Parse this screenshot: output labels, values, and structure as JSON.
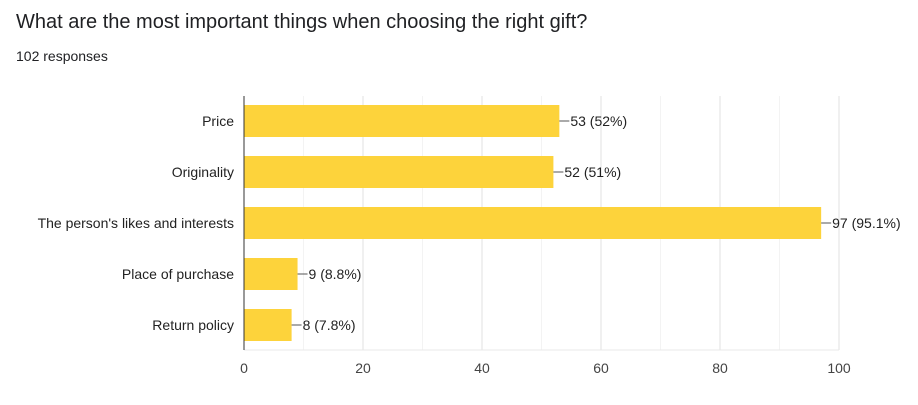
{
  "question": {
    "title": "What are the most important things when choosing the right gift?",
    "responses_label": "102 responses"
  },
  "chart_data": {
    "type": "bar",
    "orientation": "horizontal",
    "categories": [
      "Price",
      "Originality",
      "The person's likes and interests",
      "Place of purchase",
      "Return policy"
    ],
    "values": [
      53,
      52,
      97,
      9,
      8
    ],
    "data_labels": [
      "53 (52%)",
      "52 (51%)",
      "97 (95.1%)",
      "9 (8.8%)",
      "8 (7.8%)"
    ],
    "x_ticks": [
      0,
      20,
      40,
      60,
      80,
      100
    ],
    "xlim": [
      0,
      100
    ],
    "grid": true,
    "bar_color": "#FDD33B"
  }
}
